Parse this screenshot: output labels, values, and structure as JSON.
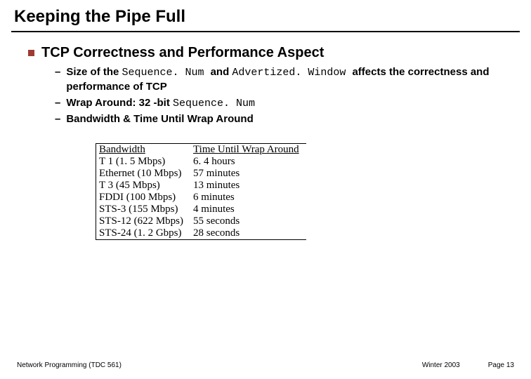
{
  "title": "Keeping the Pipe Full",
  "accent_color": "#9e3b33",
  "section_heading": "TCP Correctness and Performance Aspect",
  "sub_bullets": [
    {
      "pre": "Size of the ",
      "mono1": "Sequence. Num ",
      "mid": "and ",
      "mono2": "Advertized. Window ",
      "post": "affects the correctness and performance of TCP"
    },
    {
      "pre": "Wrap Around: 32 -bit ",
      "mono1": "Sequence. Num",
      "mid": "",
      "mono2": "",
      "post": ""
    },
    {
      "pre": "Bandwidth & Time Until Wrap Around",
      "mono1": "",
      "mid": "",
      "mono2": "",
      "post": ""
    }
  ],
  "table": {
    "columns": [
      "Bandwidth",
      "Time Until Wrap Around"
    ],
    "rows": [
      [
        "T 1 (1. 5 Mbps)",
        "6. 4 hours"
      ],
      [
        "Ethernet (10 Mbps)",
        "57 minutes"
      ],
      [
        "T 3 (45 Mbps)",
        "13 minutes"
      ],
      [
        "FDDI (100 Mbps)",
        "6 minutes"
      ],
      [
        "STS-3 (155 Mbps)",
        "4 minutes"
      ],
      [
        "STS-12 (622 Mbps)",
        "55 seconds"
      ],
      [
        "STS-24 (1. 2 Gbps)",
        "28 seconds"
      ]
    ]
  },
  "footer": {
    "left": "Network Programming (TDC 561)",
    "center": "Winter 2003",
    "right": "Page 13"
  }
}
